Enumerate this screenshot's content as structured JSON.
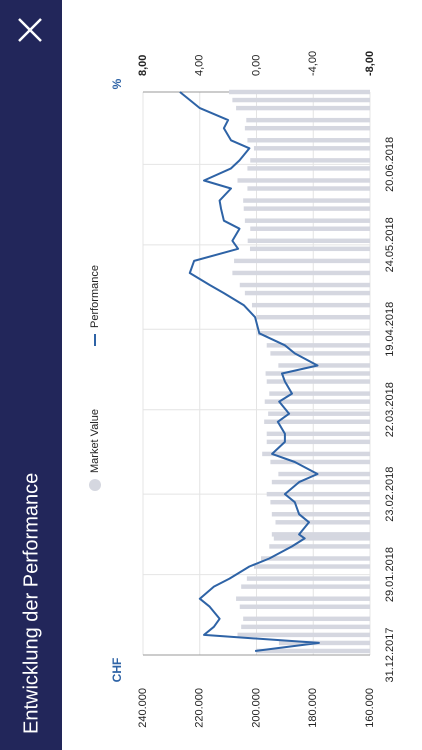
{
  "chart_data": {
    "type": "combo",
    "title": "Entwicklung der Performance",
    "ylabel": "CHF",
    "y2label": "%",
    "x": [
      1,
      3,
      5,
      7,
      9,
      12,
      14,
      17,
      19,
      22,
      24,
      27,
      29,
      30,
      33,
      35,
      38,
      40,
      43,
      45,
      48,
      50,
      53,
      55,
      58,
      60,
      63,
      65,
      68,
      70,
      72,
      75,
      77,
      80,
      84,
      87,
      90,
      92,
      95,
      98,
      101,
      103,
      106,
      108,
      111,
      113,
      116,
      118,
      121,
      123,
      126,
      128,
      131,
      133,
      136,
      138,
      140
    ],
    "xlim": [
      0,
      140
    ],
    "xticks": [
      {
        "value": 0,
        "label": "31.12.2017"
      },
      {
        "value": 20,
        "label": "29.01.2018"
      },
      {
        "value": 40,
        "label": "23.02.2018"
      },
      {
        "value": 61,
        "label": "22.03.2018"
      },
      {
        "value": 81,
        "label": "19.04.2018"
      },
      {
        "value": 102,
        "label": "24.05.2018"
      },
      {
        "value": 122,
        "label": "20.06.2018"
      }
    ],
    "ylim": [
      160000,
      240000
    ],
    "yticks": [
      {
        "value": 160000,
        "label": "160.000"
      },
      {
        "value": 180000,
        "label": "180.000"
      },
      {
        "value": 200000,
        "label": "200.000"
      },
      {
        "value": 220000,
        "label": "220.000"
      },
      {
        "value": 240000,
        "label": "240.000"
      }
    ],
    "y2lim": [
      -8,
      8
    ],
    "y2ticks": [
      {
        "value": -8,
        "label": "-8,00"
      },
      {
        "value": -4,
        "label": "-4,00"
      },
      {
        "value": 0,
        "label": "0,00"
      },
      {
        "value": 4,
        "label": "4,00"
      },
      {
        "value": 8,
        "label": "8,00"
      }
    ],
    "grid": true,
    "series": [
      {
        "name": "Market Value",
        "type": "bar",
        "color": "#d5d7e0",
        "values": [
          200200,
          192100,
          206700,
          205400,
          204700,
          205900,
          207200,
          205400,
          203400,
          200900,
          198400,
          195500,
          193900,
          194600,
          193300,
          194600,
          195100,
          196400,
          194600,
          192300,
          195100,
          198000,
          196400,
          196400,
          197300,
          195900,
          197100,
          195500,
          196400,
          196800,
          192300,
          195100,
          196400,
          199600,
          200200,
          201600,
          204100,
          205900,
          208500,
          207900,
          202300,
          203100,
          202200,
          204100,
          204500,
          204700,
          203200,
          206700,
          203200,
          202200,
          200900,
          203200,
          204100,
          203600,
          207200,
          208500,
          209700
        ]
      },
      {
        "name": "Performance",
        "type": "line",
        "axis": "y2",
        "color": "#2e63a6",
        "values": [
          0.1,
          -4.4,
          3.7,
          3.0,
          2.6,
          3.3,
          4.0,
          3.0,
          1.9,
          0.5,
          -0.9,
          -2.5,
          -3.4,
          -3.0,
          -3.7,
          -3.0,
          -2.7,
          -2.0,
          -3.0,
          -4.3,
          -2.7,
          -1.1,
          -2.0,
          -2.0,
          -1.5,
          -2.3,
          -1.6,
          -2.5,
          -2.0,
          -1.8,
          -4.3,
          -2.7,
          -2.0,
          -0.2,
          0.1,
          0.9,
          2.3,
          3.3,
          4.7,
          4.4,
          1.3,
          1.7,
          1.2,
          2.3,
          2.5,
          2.6,
          1.8,
          3.7,
          1.8,
          1.2,
          0.5,
          1.8,
          2.3,
          2.0,
          4.0,
          4.7,
          5.4
        ]
      }
    ]
  }
}
